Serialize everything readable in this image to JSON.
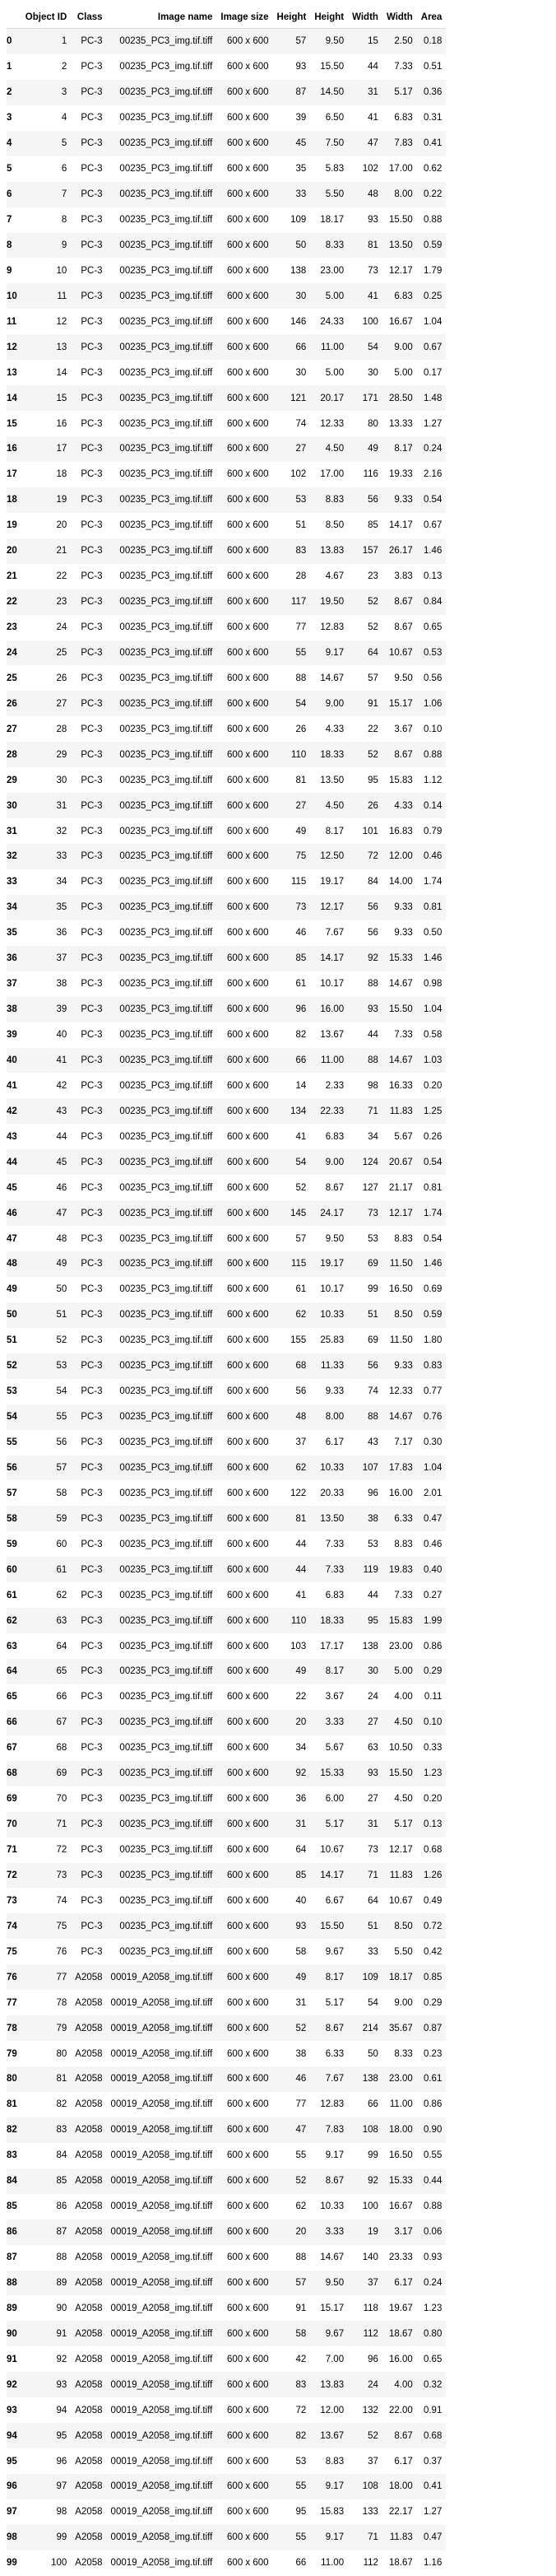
{
  "columns": [
    "Object ID",
    "Class",
    "Image name",
    "Image size",
    "Height",
    "Height",
    "Width",
    "Width",
    "Area"
  ],
  "rows": [
    [
      "0",
      "1",
      "PC-3",
      "00235_PC3_img.tif.tiff",
      "600 x 600",
      "57",
      "9.50",
      "15",
      "2.50",
      "0.18"
    ],
    [
      "1",
      "2",
      "PC-3",
      "00235_PC3_img.tif.tiff",
      "600 x 600",
      "93",
      "15.50",
      "44",
      "7.33",
      "0.51"
    ],
    [
      "2",
      "3",
      "PC-3",
      "00235_PC3_img.tif.tiff",
      "600 x 600",
      "87",
      "14.50",
      "31",
      "5.17",
      "0.36"
    ],
    [
      "3",
      "4",
      "PC-3",
      "00235_PC3_img.tif.tiff",
      "600 x 600",
      "39",
      "6.50",
      "41",
      "6.83",
      "0.31"
    ],
    [
      "4",
      "5",
      "PC-3",
      "00235_PC3_img.tif.tiff",
      "600 x 600",
      "45",
      "7.50",
      "47",
      "7.83",
      "0.41"
    ],
    [
      "5",
      "6",
      "PC-3",
      "00235_PC3_img.tif.tiff",
      "600 x 600",
      "35",
      "5.83",
      "102",
      "17.00",
      "0.62"
    ],
    [
      "6",
      "7",
      "PC-3",
      "00235_PC3_img.tif.tiff",
      "600 x 600",
      "33",
      "5.50",
      "48",
      "8.00",
      "0.22"
    ],
    [
      "7",
      "8",
      "PC-3",
      "00235_PC3_img.tif.tiff",
      "600 x 600",
      "109",
      "18.17",
      "93",
      "15.50",
      "0.88"
    ],
    [
      "8",
      "9",
      "PC-3",
      "00235_PC3_img.tif.tiff",
      "600 x 600",
      "50",
      "8.33",
      "81",
      "13.50",
      "0.59"
    ],
    [
      "9",
      "10",
      "PC-3",
      "00235_PC3_img.tif.tiff",
      "600 x 600",
      "138",
      "23.00",
      "73",
      "12.17",
      "1.79"
    ],
    [
      "10",
      "11",
      "PC-3",
      "00235_PC3_img.tif.tiff",
      "600 x 600",
      "30",
      "5.00",
      "41",
      "6.83",
      "0.25"
    ],
    [
      "11",
      "12",
      "PC-3",
      "00235_PC3_img.tif.tiff",
      "600 x 600",
      "146",
      "24.33",
      "100",
      "16.67",
      "1.04"
    ],
    [
      "12",
      "13",
      "PC-3",
      "00235_PC3_img.tif.tiff",
      "600 x 600",
      "66",
      "11.00",
      "54",
      "9.00",
      "0.67"
    ],
    [
      "13",
      "14",
      "PC-3",
      "00235_PC3_img.tif.tiff",
      "600 x 600",
      "30",
      "5.00",
      "30",
      "5.00",
      "0.17"
    ],
    [
      "14",
      "15",
      "PC-3",
      "00235_PC3_img.tif.tiff",
      "600 x 600",
      "121",
      "20.17",
      "171",
      "28.50",
      "1.48"
    ],
    [
      "15",
      "16",
      "PC-3",
      "00235_PC3_img.tif.tiff",
      "600 x 600",
      "74",
      "12.33",
      "80",
      "13.33",
      "1.27"
    ],
    [
      "16",
      "17",
      "PC-3",
      "00235_PC3_img.tif.tiff",
      "600 x 600",
      "27",
      "4.50",
      "49",
      "8.17",
      "0.24"
    ],
    [
      "17",
      "18",
      "PC-3",
      "00235_PC3_img.tif.tiff",
      "600 x 600",
      "102",
      "17.00",
      "116",
      "19.33",
      "2.16"
    ],
    [
      "18",
      "19",
      "PC-3",
      "00235_PC3_img.tif.tiff",
      "600 x 600",
      "53",
      "8.83",
      "56",
      "9.33",
      "0.54"
    ],
    [
      "19",
      "20",
      "PC-3",
      "00235_PC3_img.tif.tiff",
      "600 x 600",
      "51",
      "8.50",
      "85",
      "14.17",
      "0.67"
    ],
    [
      "20",
      "21",
      "PC-3",
      "00235_PC3_img.tif.tiff",
      "600 x 600",
      "83",
      "13.83",
      "157",
      "26.17",
      "1.46"
    ],
    [
      "21",
      "22",
      "PC-3",
      "00235_PC3_img.tif.tiff",
      "600 x 600",
      "28",
      "4.67",
      "23",
      "3.83",
      "0.13"
    ],
    [
      "22",
      "23",
      "PC-3",
      "00235_PC3_img.tif.tiff",
      "600 x 600",
      "117",
      "19.50",
      "52",
      "8.67",
      "0.84"
    ],
    [
      "23",
      "24",
      "PC-3",
      "00235_PC3_img.tif.tiff",
      "600 x 600",
      "77",
      "12.83",
      "52",
      "8.67",
      "0.65"
    ],
    [
      "24",
      "25",
      "PC-3",
      "00235_PC3_img.tif.tiff",
      "600 x 600",
      "55",
      "9.17",
      "64",
      "10.67",
      "0.53"
    ],
    [
      "25",
      "26",
      "PC-3",
      "00235_PC3_img.tif.tiff",
      "600 x 600",
      "88",
      "14.67",
      "57",
      "9.50",
      "0.56"
    ],
    [
      "26",
      "27",
      "PC-3",
      "00235_PC3_img.tif.tiff",
      "600 x 600",
      "54",
      "9.00",
      "91",
      "15.17",
      "1.06"
    ],
    [
      "27",
      "28",
      "PC-3",
      "00235_PC3_img.tif.tiff",
      "600 x 600",
      "26",
      "4.33",
      "22",
      "3.67",
      "0.10"
    ],
    [
      "28",
      "29",
      "PC-3",
      "00235_PC3_img.tif.tiff",
      "600 x 600",
      "110",
      "18.33",
      "52",
      "8.67",
      "0.88"
    ],
    [
      "29",
      "30",
      "PC-3",
      "00235_PC3_img.tif.tiff",
      "600 x 600",
      "81",
      "13.50",
      "95",
      "15.83",
      "1.12"
    ],
    [
      "30",
      "31",
      "PC-3",
      "00235_PC3_img.tif.tiff",
      "600 x 600",
      "27",
      "4.50",
      "26",
      "4.33",
      "0.14"
    ],
    [
      "31",
      "32",
      "PC-3",
      "00235_PC3_img.tif.tiff",
      "600 x 600",
      "49",
      "8.17",
      "101",
      "16.83",
      "0.79"
    ],
    [
      "32",
      "33",
      "PC-3",
      "00235_PC3_img.tif.tiff",
      "600 x 600",
      "75",
      "12.50",
      "72",
      "12.00",
      "0.46"
    ],
    [
      "33",
      "34",
      "PC-3",
      "00235_PC3_img.tif.tiff",
      "600 x 600",
      "115",
      "19.17",
      "84",
      "14.00",
      "1.74"
    ],
    [
      "34",
      "35",
      "PC-3",
      "00235_PC3_img.tif.tiff",
      "600 x 600",
      "73",
      "12.17",
      "56",
      "9.33",
      "0.81"
    ],
    [
      "35",
      "36",
      "PC-3",
      "00235_PC3_img.tif.tiff",
      "600 x 600",
      "46",
      "7.67",
      "56",
      "9.33",
      "0.50"
    ],
    [
      "36",
      "37",
      "PC-3",
      "00235_PC3_img.tif.tiff",
      "600 x 600",
      "85",
      "14.17",
      "92",
      "15.33",
      "1.46"
    ],
    [
      "37",
      "38",
      "PC-3",
      "00235_PC3_img.tif.tiff",
      "600 x 600",
      "61",
      "10.17",
      "88",
      "14.67",
      "0.98"
    ],
    [
      "38",
      "39",
      "PC-3",
      "00235_PC3_img.tif.tiff",
      "600 x 600",
      "96",
      "16.00",
      "93",
      "15.50",
      "1.04"
    ],
    [
      "39",
      "40",
      "PC-3",
      "00235_PC3_img.tif.tiff",
      "600 x 600",
      "82",
      "13.67",
      "44",
      "7.33",
      "0.58"
    ],
    [
      "40",
      "41",
      "PC-3",
      "00235_PC3_img.tif.tiff",
      "600 x 600",
      "66",
      "11.00",
      "88",
      "14.67",
      "1.03"
    ],
    [
      "41",
      "42",
      "PC-3",
      "00235_PC3_img.tif.tiff",
      "600 x 600",
      "14",
      "2.33",
      "98",
      "16.33",
      "0.20"
    ],
    [
      "42",
      "43",
      "PC-3",
      "00235_PC3_img.tif.tiff",
      "600 x 600",
      "134",
      "22.33",
      "71",
      "11.83",
      "1.25"
    ],
    [
      "43",
      "44",
      "PC-3",
      "00235_PC3_img.tif.tiff",
      "600 x 600",
      "41",
      "6.83",
      "34",
      "5.67",
      "0.26"
    ],
    [
      "44",
      "45",
      "PC-3",
      "00235_PC3_img.tif.tiff",
      "600 x 600",
      "54",
      "9.00",
      "124",
      "20.67",
      "0.54"
    ],
    [
      "45",
      "46",
      "PC-3",
      "00235_PC3_img.tif.tiff",
      "600 x 600",
      "52",
      "8.67",
      "127",
      "21.17",
      "0.81"
    ],
    [
      "46",
      "47",
      "PC-3",
      "00235_PC3_img.tif.tiff",
      "600 x 600",
      "145",
      "24.17",
      "73",
      "12.17",
      "1.74"
    ],
    [
      "47",
      "48",
      "PC-3",
      "00235_PC3_img.tif.tiff",
      "600 x 600",
      "57",
      "9.50",
      "53",
      "8.83",
      "0.54"
    ],
    [
      "48",
      "49",
      "PC-3",
      "00235_PC3_img.tif.tiff",
      "600 x 600",
      "115",
      "19.17",
      "69",
      "11.50",
      "1.46"
    ],
    [
      "49",
      "50",
      "PC-3",
      "00235_PC3_img.tif.tiff",
      "600 x 600",
      "61",
      "10.17",
      "99",
      "16.50",
      "0.69"
    ],
    [
      "50",
      "51",
      "PC-3",
      "00235_PC3_img.tif.tiff",
      "600 x 600",
      "62",
      "10.33",
      "51",
      "8.50",
      "0.59"
    ],
    [
      "51",
      "52",
      "PC-3",
      "00235_PC3_img.tif.tiff",
      "600 x 600",
      "155",
      "25.83",
      "69",
      "11.50",
      "1.80"
    ],
    [
      "52",
      "53",
      "PC-3",
      "00235_PC3_img.tif.tiff",
      "600 x 600",
      "68",
      "11.33",
      "56",
      "9.33",
      "0.83"
    ],
    [
      "53",
      "54",
      "PC-3",
      "00235_PC3_img.tif.tiff",
      "600 x 600",
      "56",
      "9.33",
      "74",
      "12.33",
      "0.77"
    ],
    [
      "54",
      "55",
      "PC-3",
      "00235_PC3_img.tif.tiff",
      "600 x 600",
      "48",
      "8.00",
      "88",
      "14.67",
      "0.76"
    ],
    [
      "55",
      "56",
      "PC-3",
      "00235_PC3_img.tif.tiff",
      "600 x 600",
      "37",
      "6.17",
      "43",
      "7.17",
      "0.30"
    ],
    [
      "56",
      "57",
      "PC-3",
      "00235_PC3_img.tif.tiff",
      "600 x 600",
      "62",
      "10.33",
      "107",
      "17.83",
      "1.04"
    ],
    [
      "57",
      "58",
      "PC-3",
      "00235_PC3_img.tif.tiff",
      "600 x 600",
      "122",
      "20.33",
      "96",
      "16.00",
      "2.01"
    ],
    [
      "58",
      "59",
      "PC-3",
      "00235_PC3_img.tif.tiff",
      "600 x 600",
      "81",
      "13.50",
      "38",
      "6.33",
      "0.47"
    ],
    [
      "59",
      "60",
      "PC-3",
      "00235_PC3_img.tif.tiff",
      "600 x 600",
      "44",
      "7.33",
      "53",
      "8.83",
      "0.46"
    ],
    [
      "60",
      "61",
      "PC-3",
      "00235_PC3_img.tif.tiff",
      "600 x 600",
      "44",
      "7.33",
      "119",
      "19.83",
      "0.40"
    ],
    [
      "61",
      "62",
      "PC-3",
      "00235_PC3_img.tif.tiff",
      "600 x 600",
      "41",
      "6.83",
      "44",
      "7.33",
      "0.27"
    ],
    [
      "62",
      "63",
      "PC-3",
      "00235_PC3_img.tif.tiff",
      "600 x 600",
      "110",
      "18.33",
      "95",
      "15.83",
      "1.99"
    ],
    [
      "63",
      "64",
      "PC-3",
      "00235_PC3_img.tif.tiff",
      "600 x 600",
      "103",
      "17.17",
      "138",
      "23.00",
      "0.86"
    ],
    [
      "64",
      "65",
      "PC-3",
      "00235_PC3_img.tif.tiff",
      "600 x 600",
      "49",
      "8.17",
      "30",
      "5.00",
      "0.29"
    ],
    [
      "65",
      "66",
      "PC-3",
      "00235_PC3_img.tif.tiff",
      "600 x 600",
      "22",
      "3.67",
      "24",
      "4.00",
      "0.11"
    ],
    [
      "66",
      "67",
      "PC-3",
      "00235_PC3_img.tif.tiff",
      "600 x 600",
      "20",
      "3.33",
      "27",
      "4.50",
      "0.10"
    ],
    [
      "67",
      "68",
      "PC-3",
      "00235_PC3_img.tif.tiff",
      "600 x 600",
      "34",
      "5.67",
      "63",
      "10.50",
      "0.33"
    ],
    [
      "68",
      "69",
      "PC-3",
      "00235_PC3_img.tif.tiff",
      "600 x 600",
      "92",
      "15.33",
      "93",
      "15.50",
      "1.23"
    ],
    [
      "69",
      "70",
      "PC-3",
      "00235_PC3_img.tif.tiff",
      "600 x 600",
      "36",
      "6.00",
      "27",
      "4.50",
      "0.20"
    ],
    [
      "70",
      "71",
      "PC-3",
      "00235_PC3_img.tif.tiff",
      "600 x 600",
      "31",
      "5.17",
      "31",
      "5.17",
      "0.13"
    ],
    [
      "71",
      "72",
      "PC-3",
      "00235_PC3_img.tif.tiff",
      "600 x 600",
      "64",
      "10.67",
      "73",
      "12.17",
      "0.68"
    ],
    [
      "72",
      "73",
      "PC-3",
      "00235_PC3_img.tif.tiff",
      "600 x 600",
      "85",
      "14.17",
      "71",
      "11.83",
      "1.26"
    ],
    [
      "73",
      "74",
      "PC-3",
      "00235_PC3_img.tif.tiff",
      "600 x 600",
      "40",
      "6.67",
      "64",
      "10.67",
      "0.49"
    ],
    [
      "74",
      "75",
      "PC-3",
      "00235_PC3_img.tif.tiff",
      "600 x 600",
      "93",
      "15.50",
      "51",
      "8.50",
      "0.72"
    ],
    [
      "75",
      "76",
      "PC-3",
      "00235_PC3_img.tif.tiff",
      "600 x 600",
      "58",
      "9.67",
      "33",
      "5.50",
      "0.42"
    ],
    [
      "76",
      "77",
      "A2058",
      "00019_A2058_img.tif.tiff",
      "600 x 600",
      "49",
      "8.17",
      "109",
      "18.17",
      "0.85"
    ],
    [
      "77",
      "78",
      "A2058",
      "00019_A2058_img.tif.tiff",
      "600 x 600",
      "31",
      "5.17",
      "54",
      "9.00",
      "0.29"
    ],
    [
      "78",
      "79",
      "A2058",
      "00019_A2058_img.tif.tiff",
      "600 x 600",
      "52",
      "8.67",
      "214",
      "35.67",
      "0.87"
    ],
    [
      "79",
      "80",
      "A2058",
      "00019_A2058_img.tif.tiff",
      "600 x 600",
      "38",
      "6.33",
      "50",
      "8.33",
      "0.23"
    ],
    [
      "80",
      "81",
      "A2058",
      "00019_A2058_img.tif.tiff",
      "600 x 600",
      "46",
      "7.67",
      "138",
      "23.00",
      "0.61"
    ],
    [
      "81",
      "82",
      "A2058",
      "00019_A2058_img.tif.tiff",
      "600 x 600",
      "77",
      "12.83",
      "66",
      "11.00",
      "0.86"
    ],
    [
      "82",
      "83",
      "A2058",
      "00019_A2058_img.tif.tiff",
      "600 x 600",
      "47",
      "7.83",
      "108",
      "18.00",
      "0.90"
    ],
    [
      "83",
      "84",
      "A2058",
      "00019_A2058_img.tif.tiff",
      "600 x 600",
      "55",
      "9.17",
      "99",
      "16.50",
      "0.55"
    ],
    [
      "84",
      "85",
      "A2058",
      "00019_A2058_img.tif.tiff",
      "600 x 600",
      "52",
      "8.67",
      "92",
      "15.33",
      "0.44"
    ],
    [
      "85",
      "86",
      "A2058",
      "00019_A2058_img.tif.tiff",
      "600 x 600",
      "62",
      "10.33",
      "100",
      "16.67",
      "0.88"
    ],
    [
      "86",
      "87",
      "A2058",
      "00019_A2058_img.tif.tiff",
      "600 x 600",
      "20",
      "3.33",
      "19",
      "3.17",
      "0.06"
    ],
    [
      "87",
      "88",
      "A2058",
      "00019_A2058_img.tif.tiff",
      "600 x 600",
      "88",
      "14.67",
      "140",
      "23.33",
      "0.93"
    ],
    [
      "88",
      "89",
      "A2058",
      "00019_A2058_img.tif.tiff",
      "600 x 600",
      "57",
      "9.50",
      "37",
      "6.17",
      "0.24"
    ],
    [
      "89",
      "90",
      "A2058",
      "00019_A2058_img.tif.tiff",
      "600 x 600",
      "91",
      "15.17",
      "118",
      "19.67",
      "1.23"
    ],
    [
      "90",
      "91",
      "A2058",
      "00019_A2058_img.tif.tiff",
      "600 x 600",
      "58",
      "9.67",
      "112",
      "18.67",
      "0.80"
    ],
    [
      "91",
      "92",
      "A2058",
      "00019_A2058_img.tif.tiff",
      "600 x 600",
      "42",
      "7.00",
      "96",
      "16.00",
      "0.65"
    ],
    [
      "92",
      "93",
      "A2058",
      "00019_A2058_img.tif.tiff",
      "600 x 600",
      "83",
      "13.83",
      "24",
      "4.00",
      "0.32"
    ],
    [
      "93",
      "94",
      "A2058",
      "00019_A2058_img.tif.tiff",
      "600 x 600",
      "72",
      "12.00",
      "132",
      "22.00",
      "0.91"
    ],
    [
      "94",
      "95",
      "A2058",
      "00019_A2058_img.tif.tiff",
      "600 x 600",
      "82",
      "13.67",
      "52",
      "8.67",
      "0.68"
    ],
    [
      "95",
      "96",
      "A2058",
      "00019_A2058_img.tif.tiff",
      "600 x 600",
      "53",
      "8.83",
      "37",
      "6.17",
      "0.37"
    ],
    [
      "96",
      "97",
      "A2058",
      "00019_A2058_img.tif.tiff",
      "600 x 600",
      "55",
      "9.17",
      "108",
      "18.00",
      "0.41"
    ],
    [
      "97",
      "98",
      "A2058",
      "00019_A2058_img.tif.tiff",
      "600 x 600",
      "95",
      "15.83",
      "133",
      "22.17",
      "1.27"
    ],
    [
      "98",
      "99",
      "A2058",
      "00019_A2058_img.tif.tiff",
      "600 x 600",
      "55",
      "9.17",
      "71",
      "11.83",
      "0.47"
    ],
    [
      "99",
      "100",
      "A2058",
      "00019_A2058_img.tif.tiff",
      "600 x 600",
      "66",
      "11.00",
      "112",
      "18.67",
      "1.16"
    ]
  ]
}
